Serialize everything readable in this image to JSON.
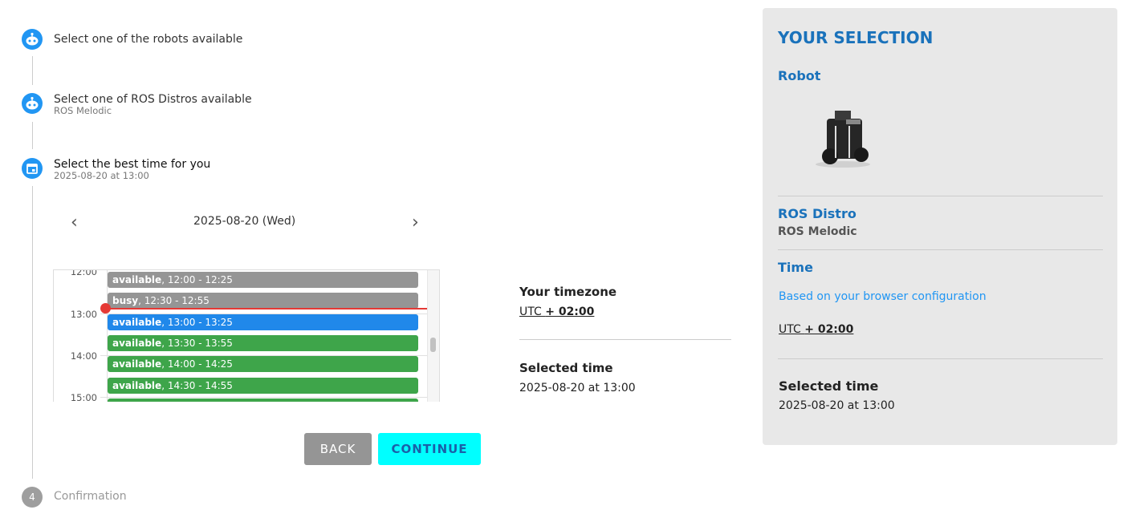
{
  "steps": [
    {
      "title": "Select one of the robots available",
      "icon": "robot-icon"
    },
    {
      "title": "Select one of ROS Distros available",
      "subtitle": "ROS Melodic",
      "icon": "robot-icon"
    },
    {
      "title": "Select the best time for you",
      "subtitle": "2025-08-20 at 13:00",
      "icon": "calendar-icon"
    },
    {
      "title": "Confirmation",
      "number": "4"
    }
  ],
  "calendar": {
    "date": "2025-08-20 (Wed)",
    "hours": [
      "12:00",
      "13:00",
      "14:00",
      "15:00"
    ],
    "events": [
      {
        "status": "available",
        "range": ", 12:00 - 12:25",
        "color": "#959595"
      },
      {
        "status": "busy",
        "range": ", 12:30 - 12:55",
        "color": "#959595"
      },
      {
        "status": "available",
        "range": ", 13:00 - 13:25",
        "color": "#2088ea"
      },
      {
        "status": "available",
        "range": ", 13:30 - 13:55",
        "color": "#3ea54a"
      },
      {
        "status": "available",
        "range": ", 14:00 - 14:25",
        "color": "#3ea54a"
      },
      {
        "status": "available",
        "range": ", 14:30 - 14:55",
        "color": "#3ea54a"
      },
      {
        "status": "",
        "range": "",
        "color": "#3ea54a"
      }
    ]
  },
  "timezone": {
    "label": "Your timezone",
    "prefix": "UTC ",
    "value": "+ 02:00"
  },
  "selected": {
    "label": "Selected time",
    "value": "2025-08-20 at 13:00"
  },
  "buttons": {
    "back": "BACK",
    "continue": "CONTINUE"
  },
  "panel": {
    "title": "YOUR SELECTION",
    "robot_label": "Robot",
    "distro_label": "ROS Distro",
    "distro_value": "ROS Melodic",
    "time_label": "Time",
    "browser_note": "Based on your browser configuration",
    "tz_prefix": "UTC ",
    "tz_value": "+ 02:00",
    "selected_label": "Selected time",
    "selected_value": "2025-08-20 at 13:00"
  },
  "colors": {
    "accent": "#2196f3",
    "brand": "#1a72bb",
    "continue": "#00ffff",
    "back": "#959595",
    "now_line": "#e53935"
  }
}
